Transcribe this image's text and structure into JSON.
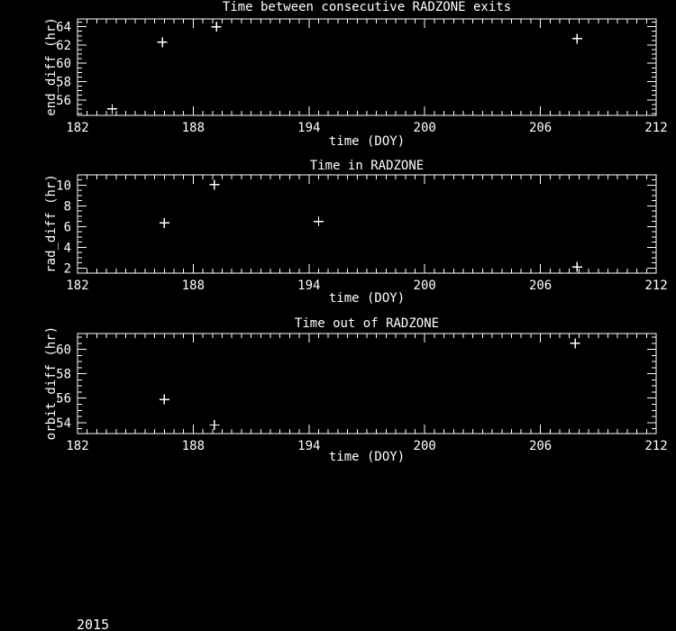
{
  "colors": {
    "background": "#000000",
    "foreground": "#ffffff"
  },
  "footer": {
    "year": "2015"
  },
  "chart_data": [
    {
      "type": "scatter",
      "title": "Time between consecutive RADZONE exits",
      "xlabel": "time (DOY)",
      "ylabel": "end_diff (hr)",
      "xlim": [
        182,
        212
      ],
      "xticks": [
        182,
        188,
        194,
        200,
        206,
        212
      ],
      "x_minor_step": 0.5,
      "ylim": [
        54.3,
        64.85
      ],
      "yticks": [
        56,
        58,
        60,
        62,
        64
      ],
      "y_minor_step": 0.5,
      "marker": "plus",
      "grid": false,
      "points": [
        {
          "x": 183.8,
          "y": 55.0
        },
        {
          "x": 186.4,
          "y": 62.3
        },
        {
          "x": 189.2,
          "y": 64.0
        },
        {
          "x": 207.9,
          "y": 62.7
        }
      ]
    },
    {
      "type": "scatter",
      "title": "Time in RADZONE",
      "xlabel": "time (DOY)",
      "ylabel": "rad_diff (hr)",
      "xlim": [
        182,
        212
      ],
      "xticks": [
        182,
        188,
        194,
        200,
        206,
        212
      ],
      "x_minor_step": 0.5,
      "ylim": [
        1.5,
        11.0
      ],
      "yticks": [
        2,
        4,
        6,
        8,
        10
      ],
      "y_minor_step": 0.5,
      "marker": "plus",
      "grid": false,
      "points": [
        {
          "x": 186.5,
          "y": 6.35
        },
        {
          "x": 189.1,
          "y": 10.05
        },
        {
          "x": 194.5,
          "y": 6.5
        },
        {
          "x": 207.9,
          "y": 2.1
        }
      ]
    },
    {
      "type": "scatter",
      "title": "Time out of RADZONE",
      "xlabel": "time (DOY)",
      "ylabel": "orbit_diff (hr)",
      "xlim": [
        182,
        212
      ],
      "xticks": [
        182,
        188,
        194,
        200,
        206,
        212
      ],
      "x_minor_step": 0.5,
      "ylim": [
        53.1,
        61.3
      ],
      "yticks": [
        54,
        56,
        58,
        60
      ],
      "y_minor_step": 0.5,
      "marker": "plus",
      "grid": false,
      "points": [
        {
          "x": 186.5,
          "y": 55.9
        },
        {
          "x": 189.1,
          "y": 53.8
        },
        {
          "x": 207.8,
          "y": 60.5
        }
      ]
    }
  ]
}
